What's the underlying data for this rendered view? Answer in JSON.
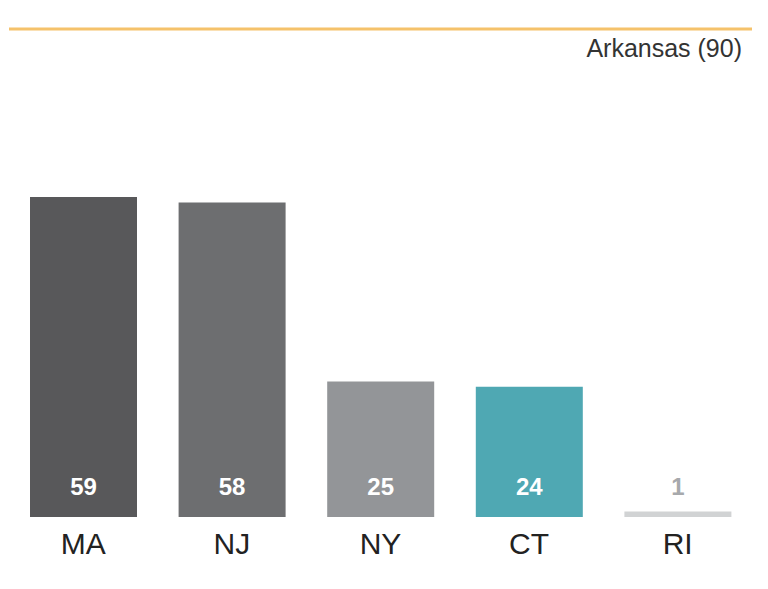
{
  "chart_data": {
    "type": "bar",
    "categories": [
      "MA",
      "NJ",
      "NY",
      "CT",
      "RI"
    ],
    "values": [
      59,
      58,
      25,
      24,
      1
    ],
    "colors": [
      "#58585a",
      "#6d6e70",
      "#939598",
      "#4fa8b3",
      "#d1d3d4"
    ],
    "ylim": [
      0,
      90
    ],
    "data_labels": true,
    "tick_labels": "x",
    "annotations": [
      {
        "value": 90,
        "label": "Arkansas (90)",
        "color": "#f5c26b"
      }
    ]
  }
}
